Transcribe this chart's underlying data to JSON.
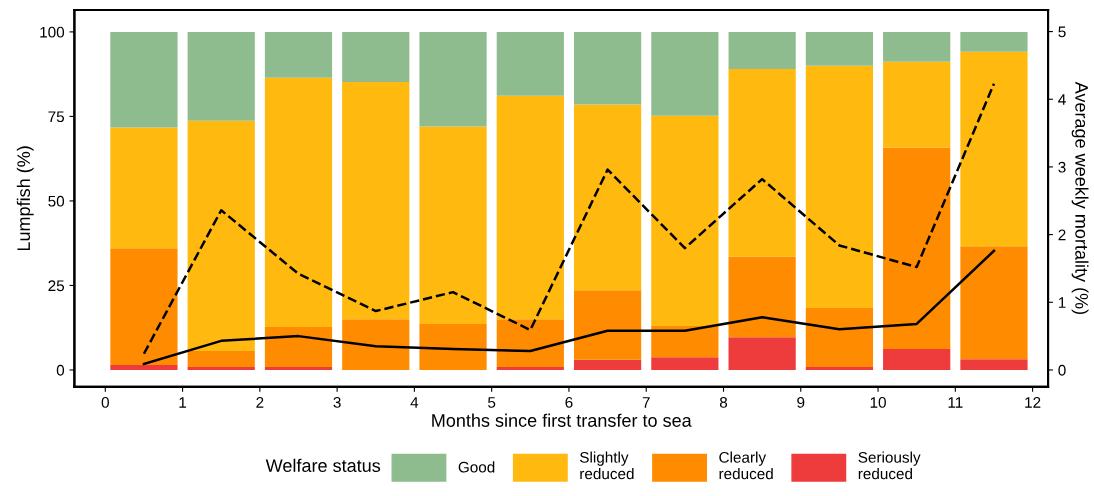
{
  "chart_data": {
    "type": "bar",
    "stacked": true,
    "xlabel": "Months since first transfer to sea",
    "ylabel": "Lumpfish (%)",
    "y2label": "Average weekly mortality (%)",
    "legend_title": "Welfare status",
    "legend": "bottom",
    "x": [
      0.5,
      1.5,
      2.5,
      3.5,
      4.5,
      5.5,
      6.5,
      7.5,
      8.5,
      9.5,
      10.5,
      11.5
    ],
    "xlim": [
      -0.4,
      12.2
    ],
    "xticks": [
      0,
      1,
      2,
      3,
      4,
      5,
      6,
      7,
      8,
      9,
      10,
      11,
      12
    ],
    "ylim": [
      -5,
      106.5
    ],
    "yticks": [
      0,
      25,
      50,
      75,
      100
    ],
    "y2lim": [
      -0.25,
      5.32
    ],
    "y2ticks": [
      0,
      1,
      2,
      3,
      4,
      5
    ],
    "series": [
      {
        "name": "Seriously\nreduced",
        "color": "#ee3b3b",
        "values": [
          1.5,
          0.9,
          0.9,
          0,
          0,
          0.9,
          3,
          3.8,
          9.7,
          0.9,
          6.2,
          3.2
        ]
      },
      {
        "name": "Clearly\nreduced",
        "color": "#ff8c00",
        "values": [
          34.5,
          4.7,
          11.8,
          15,
          13.6,
          14.1,
          20.6,
          9.2,
          23.9,
          17.4,
          59.6,
          33.4
        ]
      },
      {
        "name": "Slightly\nreduced",
        "color": "#ffb90f",
        "values": [
          35.7,
          68.1,
          73.7,
          70.2,
          58.4,
          66.1,
          54.9,
          62.2,
          55.4,
          71.7,
          25.4,
          57.5
        ]
      },
      {
        "name": "Good",
        "color": "#8fbc8f",
        "values": [
          28.3,
          26.3,
          13.6,
          14.8,
          28,
          18.9,
          21.5,
          24.8,
          11,
          10,
          8.8,
          5.9
        ]
      },
      {
        "type": "line",
        "axis": "y2",
        "color": "#000000",
        "line_style": "solid",
        "values": [
          0.09,
          0.43,
          0.5,
          0.35,
          0.31,
          0.28,
          0.58,
          0.58,
          0.78,
          0.6,
          0.68,
          1.76
        ]
      },
      {
        "type": "line",
        "axis": "y2",
        "color": "#000000",
        "line_style": "dashed",
        "values": [
          0.24,
          2.36,
          1.42,
          0.87,
          1.15,
          0.59,
          2.96,
          1.8,
          2.82,
          1.84,
          1.52,
          4.23
        ]
      }
    ]
  }
}
